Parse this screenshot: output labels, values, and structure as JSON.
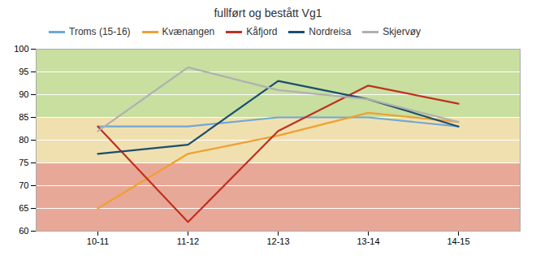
{
  "chart_data": {
    "type": "line",
    "title": "fullført og bestått Vg1",
    "categories": [
      "10-11",
      "11-12",
      "12-13",
      "13-14",
      "14-15"
    ],
    "series": [
      {
        "name": "Troms (15-16)",
        "color": "#6fa8d5",
        "values": [
          83,
          83,
          85,
          85,
          83
        ]
      },
      {
        "name": "Kvænangen",
        "color": "#f0a030",
        "values": [
          65,
          77,
          81,
          86,
          84
        ]
      },
      {
        "name": "Kåfjord",
        "color": "#c03020",
        "values": [
          83,
          62,
          82,
          92,
          88
        ]
      },
      {
        "name": "Nordreisa",
        "color": "#1a4f6e",
        "values": [
          77,
          79,
          93,
          89,
          83
        ]
      },
      {
        "name": "Skjervøy",
        "color": "#b0b0b0",
        "values": [
          82,
          96,
          91,
          89,
          84
        ]
      }
    ],
    "bands": [
      {
        "ymin": 60,
        "ymax": 75,
        "color": "#e8a898"
      },
      {
        "ymin": 75,
        "ymax": 85,
        "color": "#f0e0b0"
      },
      {
        "ymin": 85,
        "ymax": 100,
        "color": "#c8dfa0"
      }
    ],
    "ylim": [
      60,
      100
    ],
    "yticks": [
      60,
      65,
      70,
      75,
      80,
      85,
      90,
      95,
      100
    ],
    "grid": true,
    "legend": "top"
  }
}
